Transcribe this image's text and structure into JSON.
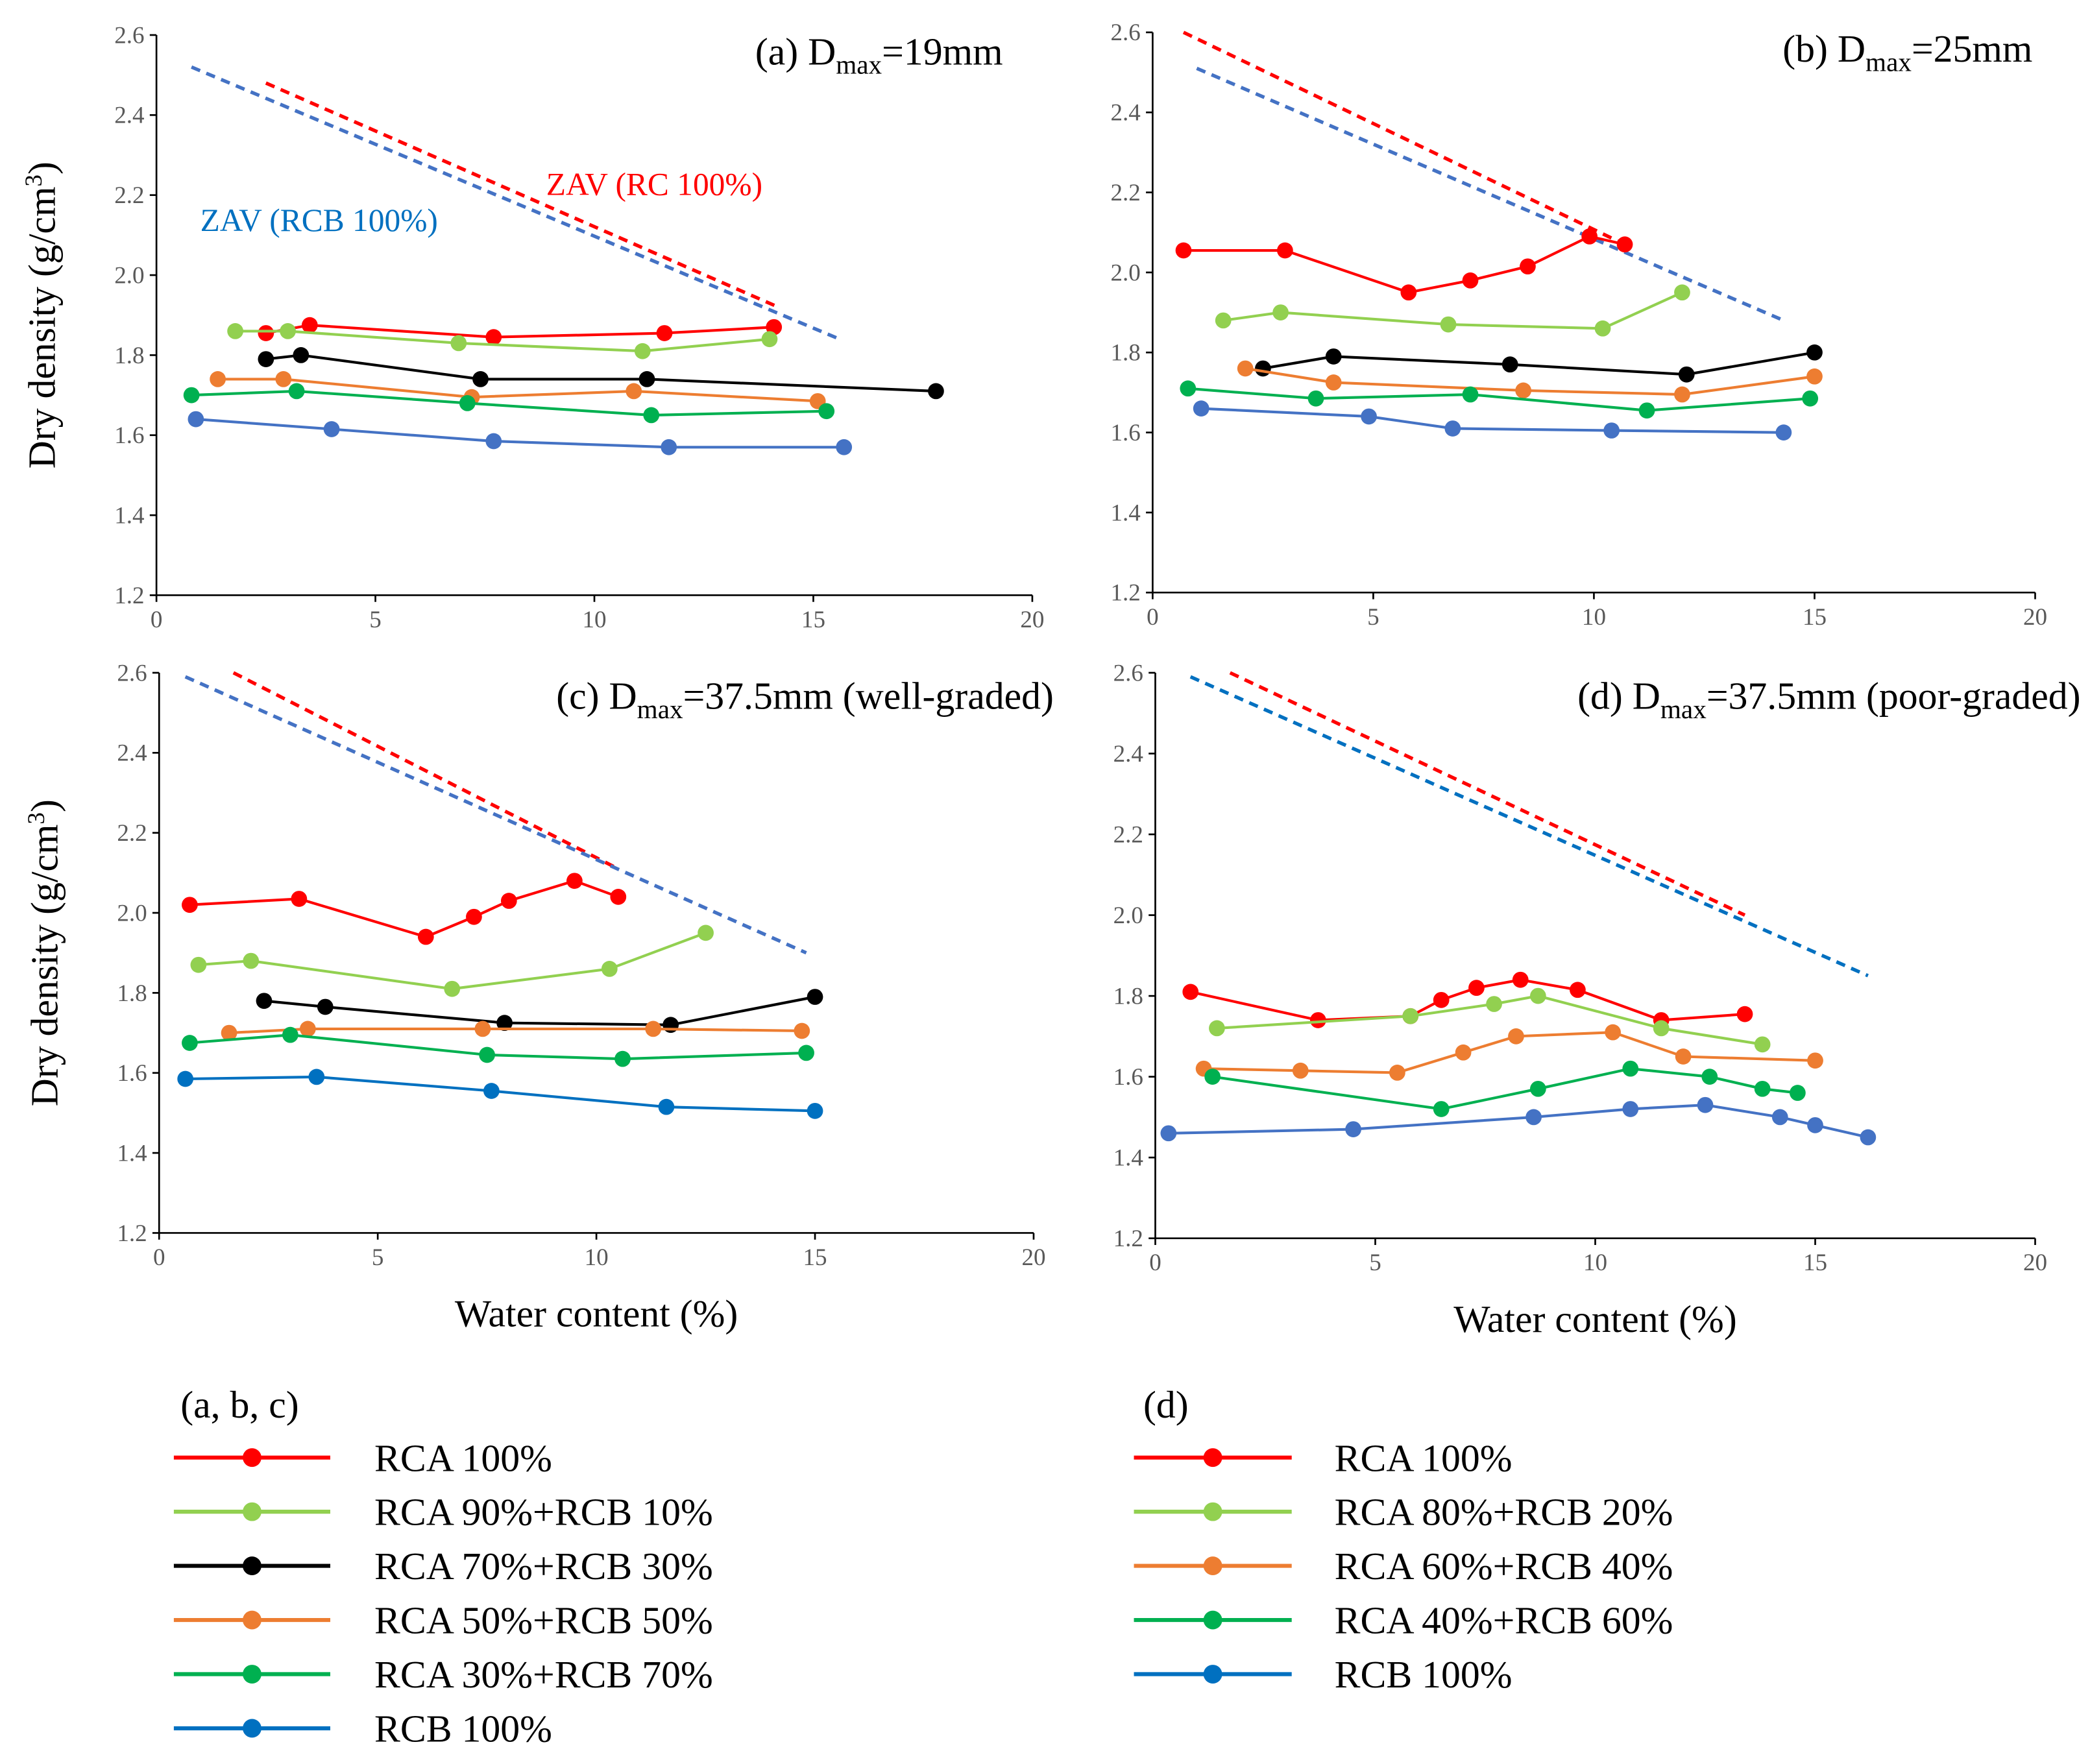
{
  "colors": {
    "rca100": "#FF0000",
    "rca90": "#92D050",
    "rca70": "#000000",
    "rca50": "#ED7D31",
    "rca30": "#00B050",
    "rcb": "#4472C4",
    "rcb_legend": "#0070C0",
    "zav_rc": "#FF0000",
    "zav_rcb": "#4472C4"
  },
  "legend_abc": {
    "heading": "(a, b, c)",
    "items": [
      {
        "label": "RCA 100%",
        "color": "#FF0000"
      },
      {
        "label": "RCA 90%+RCB 10%",
        "color": "#92D050"
      },
      {
        "label": "RCA 70%+RCB 30%",
        "color": "#000000"
      },
      {
        "label": "RCA 50%+RCB 50%",
        "color": "#ED7D31"
      },
      {
        "label": "RCA 30%+RCB 70%",
        "color": "#00B050"
      },
      {
        "label": "RCB 100%",
        "color": "#0070C0"
      }
    ]
  },
  "legend_d": {
    "heading": "(d)",
    "items": [
      {
        "label": "RCA 100%",
        "color": "#FF0000"
      },
      {
        "label": "RCA 80%+RCB 20%",
        "color": "#92D050"
      },
      {
        "label": "RCA 60%+RCB 40%",
        "color": "#ED7D31"
      },
      {
        "label": "RCA 40%+RCB 60%",
        "color": "#00B050"
      },
      {
        "label": "RCB 100%",
        "color": "#0070C0"
      }
    ]
  },
  "chart_data": [
    {
      "type": "line",
      "title": {
        "prefix": "(a) D",
        "sub": "max",
        "suffix": "=19mm"
      },
      "xlabel": "",
      "ylabel": "Dry density (g/cm3)",
      "xlim": [
        0,
        20
      ],
      "ylim": [
        1.2,
        2.6
      ],
      "xticks": [
        "0",
        "5",
        "10",
        "15",
        "20"
      ],
      "yticks": [
        "1.2",
        "1.4",
        "1.6",
        "1.8",
        "2.0",
        "2.2",
        "2.4",
        "2.6"
      ],
      "annotations": [
        {
          "text": "ZAV (RC 100%)",
          "color": "#FF0000",
          "at": [
            8.9,
            2.2
          ]
        },
        {
          "text": "ZAV (RCB 100%)",
          "color": "#0070C0",
          "at": [
            1.0,
            2.11
          ]
        }
      ],
      "zav": [
        {
          "name": "ZAV (RC 100%)",
          "color": "#FF0000",
          "points": [
            [
              2.5,
              2.48
            ],
            [
              14.2,
              1.92
            ]
          ]
        },
        {
          "name": "ZAV (RCB 100%)",
          "color": "#4472C4",
          "points": [
            [
              0.8,
              2.52
            ],
            [
              15.6,
              1.84
            ]
          ]
        }
      ],
      "series": [
        {
          "name": "RCA 100%",
          "color": "#FF0000",
          "points": [
            [
              2.5,
              1.855
            ],
            [
              3.5,
              1.875
            ],
            [
              7.7,
              1.845
            ],
            [
              11.6,
              1.855
            ],
            [
              14.1,
              1.87
            ]
          ]
        },
        {
          "name": "RCA 90%+RCB 10%",
          "color": "#92D050",
          "points": [
            [
              1.8,
              1.86
            ],
            [
              3.0,
              1.86
            ],
            [
              6.9,
              1.83
            ],
            [
              11.1,
              1.81
            ],
            [
              14.0,
              1.84
            ]
          ]
        },
        {
          "name": "RCA 70%+RCB 30%",
          "color": "#000000",
          "points": [
            [
              2.5,
              1.79
            ],
            [
              3.3,
              1.8
            ],
            [
              7.4,
              1.74
            ],
            [
              11.2,
              1.74
            ],
            [
              17.8,
              1.71
            ]
          ]
        },
        {
          "name": "RCA 50%+RCB 50%",
          "color": "#ED7D31",
          "points": [
            [
              1.4,
              1.74
            ],
            [
              2.9,
              1.74
            ],
            [
              7.2,
              1.695
            ],
            [
              10.9,
              1.71
            ],
            [
              15.1,
              1.685
            ]
          ]
        },
        {
          "name": "RCA 30%+RCB 70%",
          "color": "#00B050",
          "points": [
            [
              0.8,
              1.7
            ],
            [
              3.2,
              1.71
            ],
            [
              7.1,
              1.68
            ],
            [
              11.3,
              1.65
            ],
            [
              15.3,
              1.66
            ]
          ]
        },
        {
          "name": "RCB 100%",
          "color": "#4472C4",
          "points": [
            [
              0.9,
              1.64
            ],
            [
              4.0,
              1.615
            ],
            [
              7.7,
              1.585
            ],
            [
              11.7,
              1.57
            ],
            [
              15.7,
              1.57
            ]
          ]
        }
      ]
    },
    {
      "type": "line",
      "title": {
        "prefix": "(b) D",
        "sub": "max",
        "suffix": "=25mm"
      },
      "xlabel": "",
      "ylabel": "",
      "xlim": [
        0,
        20
      ],
      "ylim": [
        1.2,
        2.6
      ],
      "xticks": [
        "0",
        "5",
        "10",
        "15",
        "20"
      ],
      "yticks": [
        "1.2",
        "1.4",
        "1.6",
        "1.8",
        "2.0",
        "2.2",
        "2.4",
        "2.6"
      ],
      "annotations": [],
      "zav": [
        {
          "name": "ZAV (RC 100%)",
          "color": "#FF0000",
          "points": [
            [
              0.7,
              2.6
            ],
            [
              10.7,
              2.07
            ]
          ]
        },
        {
          "name": "ZAV (RCB 100%)",
          "color": "#4472C4",
          "points": [
            [
              1.0,
              2.51
            ],
            [
              14.3,
              1.88
            ]
          ]
        }
      ],
      "series": [
        {
          "name": "RCA 100%",
          "color": "#FF0000",
          "points": [
            [
              0.7,
              2.055
            ],
            [
              3.0,
              2.055
            ],
            [
              5.8,
              1.95
            ],
            [
              7.2,
              1.98
            ],
            [
              8.5,
              2.015
            ],
            [
              9.9,
              2.09
            ],
            [
              10.7,
              2.07
            ]
          ]
        },
        {
          "name": "RCA 90%+RCB 10%",
          "color": "#92D050",
          "points": [
            [
              1.6,
              1.88
            ],
            [
              2.9,
              1.9
            ],
            [
              6.7,
              1.87
            ],
            [
              10.2,
              1.86
            ],
            [
              12.0,
              1.95
            ]
          ]
        },
        {
          "name": "RCA 70%+RCB 30%",
          "color": "#000000",
          "points": [
            [
              2.5,
              1.76
            ],
            [
              4.1,
              1.79
            ],
            [
              8.1,
              1.77
            ],
            [
              12.1,
              1.745
            ],
            [
              15.0,
              1.8
            ]
          ]
        },
        {
          "name": "RCA 50%+RCB 50%",
          "color": "#ED7D31",
          "points": [
            [
              2.1,
              1.76
            ],
            [
              4.1,
              1.725
            ],
            [
              8.4,
              1.705
            ],
            [
              12.0,
              1.695
            ],
            [
              15.0,
              1.74
            ]
          ]
        },
        {
          "name": "RCA 30%+RCB 70%",
          "color": "#00B050",
          "points": [
            [
              0.8,
              1.71
            ],
            [
              3.7,
              1.685
            ],
            [
              7.2,
              1.695
            ],
            [
              11.2,
              1.655
            ],
            [
              14.9,
              1.685
            ]
          ]
        },
        {
          "name": "RCB 100%",
          "color": "#4472C4",
          "points": [
            [
              1.1,
              1.66
            ],
            [
              4.9,
              1.64
            ],
            [
              6.8,
              1.61
            ],
            [
              10.4,
              1.605
            ],
            [
              14.3,
              1.6
            ]
          ]
        }
      ]
    },
    {
      "type": "line",
      "title": {
        "prefix": "(c) D",
        "sub": "max",
        "suffix": "=37.5mm (well-graded)"
      },
      "xlabel": "Water content (%)",
      "ylabel": "Dry density (g/cm3)",
      "xlim": [
        0,
        20
      ],
      "ylim": [
        1.2,
        2.6
      ],
      "xticks": [
        "0",
        "5",
        "10",
        "15",
        "20"
      ],
      "yticks": [
        "1.2",
        "1.4",
        "1.6",
        "1.8",
        "2.0",
        "2.2",
        "2.4",
        "2.6"
      ],
      "annotations": [],
      "zav": [
        {
          "name": "ZAV (RC 100%)",
          "color": "#FF0000",
          "points": [
            [
              1.7,
              2.6
            ],
            [
              10.5,
              2.11
            ]
          ]
        },
        {
          "name": "ZAV (RCB 100%)",
          "color": "#4472C4",
          "points": [
            [
              0.6,
              2.59
            ],
            [
              14.8,
              1.9
            ]
          ]
        }
      ],
      "series": [
        {
          "name": "RCA 100%",
          "color": "#FF0000",
          "points": [
            [
              0.7,
              2.02
            ],
            [
              3.2,
              2.035
            ],
            [
              6.1,
              1.94
            ],
            [
              7.2,
              1.99
            ],
            [
              8.0,
              2.03
            ],
            [
              9.5,
              2.08
            ],
            [
              10.5,
              2.04
            ]
          ]
        },
        {
          "name": "RCA 90%+RCB 10%",
          "color": "#92D050",
          "points": [
            [
              0.9,
              1.87
            ],
            [
              2.1,
              1.88
            ],
            [
              6.7,
              1.81
            ],
            [
              10.3,
              1.86
            ],
            [
              12.5,
              1.95
            ]
          ]
        },
        {
          "name": "RCA 70%+RCB 30%",
          "color": "#000000",
          "points": [
            [
              2.4,
              1.78
            ],
            [
              3.8,
              1.765
            ],
            [
              7.9,
              1.725
            ],
            [
              11.7,
              1.72
            ],
            [
              15.0,
              1.79
            ]
          ]
        },
        {
          "name": "RCA 50%+RCB 50%",
          "color": "#ED7D31",
          "points": [
            [
              1.6,
              1.7
            ],
            [
              3.4,
              1.71
            ],
            [
              7.4,
              1.71
            ],
            [
              11.3,
              1.71
            ],
            [
              14.7,
              1.705
            ]
          ]
        },
        {
          "name": "RCA 30%+RCB 70%",
          "color": "#00B050",
          "points": [
            [
              0.7,
              1.675
            ],
            [
              3.0,
              1.695
            ],
            [
              7.5,
              1.645
            ],
            [
              10.6,
              1.635
            ],
            [
              14.8,
              1.65
            ]
          ]
        },
        {
          "name": "RCB 100%",
          "color": "#0070C0",
          "points": [
            [
              0.6,
              1.585
            ],
            [
              3.6,
              1.59
            ],
            [
              7.6,
              1.555
            ],
            [
              11.6,
              1.515
            ],
            [
              15.0,
              1.505
            ]
          ]
        }
      ]
    },
    {
      "type": "line",
      "title": {
        "prefix": "(d) D",
        "sub": "max",
        "suffix": "=37.5mm (poor-graded)"
      },
      "xlabel": "Water content (%)",
      "ylabel": "",
      "xlim": [
        0,
        20
      ],
      "ylim": [
        1.2,
        2.6
      ],
      "xticks": [
        "0",
        "5",
        "10",
        "15",
        "20"
      ],
      "yticks": [
        "1.2",
        "1.4",
        "1.6",
        "1.8",
        "2.0",
        "2.2",
        "2.4",
        "2.6"
      ],
      "annotations": [],
      "zav": [
        {
          "name": "ZAV (RC 100%)",
          "color": "#FF0000",
          "points": [
            [
              1.7,
              2.6
            ],
            [
              13.4,
              2.0
            ]
          ]
        },
        {
          "name": "ZAV (RCB 100%)",
          "color": "#0070C0",
          "points": [
            [
              0.8,
              2.59
            ],
            [
              16.2,
              1.85
            ]
          ]
        }
      ],
      "series": [
        {
          "name": "RCA 100%",
          "color": "#FF0000",
          "points": [
            [
              0.8,
              1.81
            ],
            [
              3.7,
              1.74
            ],
            [
              5.8,
              1.75
            ],
            [
              6.5,
              1.79
            ],
            [
              7.3,
              1.82
            ],
            [
              8.3,
              1.84
            ],
            [
              9.6,
              1.815
            ],
            [
              11.5,
              1.74
            ],
            [
              13.4,
              1.755
            ]
          ]
        },
        {
          "name": "RCA 80%+RCB 20%",
          "color": "#92D050",
          "points": [
            [
              1.4,
              1.72
            ],
            [
              5.8,
              1.75
            ],
            [
              7.7,
              1.78
            ],
            [
              8.7,
              1.8
            ],
            [
              11.5,
              1.72
            ],
            [
              13.8,
              1.68
            ]
          ]
        },
        {
          "name": "RCA 60%+RCB 40%",
          "color": "#ED7D31",
          "points": [
            [
              1.1,
              1.62
            ],
            [
              3.3,
              1.615
            ],
            [
              5.5,
              1.61
            ],
            [
              7.0,
              1.66
            ],
            [
              8.2,
              1.7
            ],
            [
              10.4,
              1.71
            ],
            [
              12.0,
              1.65
            ],
            [
              15.0,
              1.64
            ]
          ]
        },
        {
          "name": "RCA 40%+RCB 60%",
          "color": "#00B050",
          "points": [
            [
              1.3,
              1.6
            ],
            [
              6.5,
              1.52
            ],
            [
              8.7,
              1.57
            ],
            [
              10.8,
              1.62
            ],
            [
              12.6,
              1.6
            ],
            [
              13.8,
              1.57
            ],
            [
              14.6,
              1.56
            ]
          ]
        },
        {
          "name": "RCB 100%",
          "color": "#4472C4",
          "points": [
            [
              0.3,
              1.46
            ],
            [
              4.5,
              1.47
            ],
            [
              8.6,
              1.5
            ],
            [
              10.8,
              1.52
            ],
            [
              12.5,
              1.53
            ],
            [
              14.2,
              1.5
            ],
            [
              15.0,
              1.48
            ],
            [
              16.2,
              1.45
            ]
          ]
        }
      ]
    }
  ]
}
